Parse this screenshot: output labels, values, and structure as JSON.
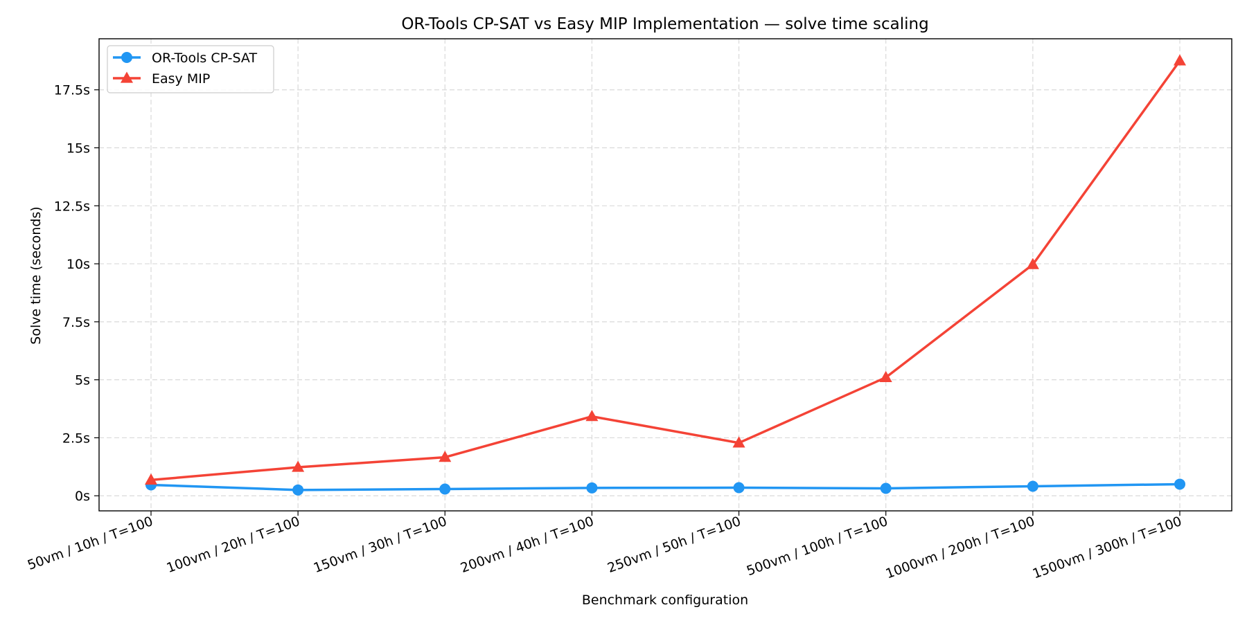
{
  "chart_data": {
    "type": "line",
    "title": "OR-Tools CP-SAT vs Easy MIP Implementation — solve time scaling",
    "xlabel": "Benchmark configuration",
    "ylabel": "Solve time (seconds)",
    "categories": [
      "50vm / 10h / T=100",
      "100vm / 20h / T=100",
      "150vm / 30h / T=100",
      "200vm / 40h / T=100",
      "250vm / 50h / T=100",
      "500vm / 100h / T=100",
      "1000vm / 200h / T=100",
      "1500vm / 300h / T=100"
    ],
    "yticks": [
      0,
      2.5,
      5,
      7.5,
      10,
      12.5,
      15,
      17.5
    ],
    "ytick_labels": [
      "0s",
      "2.5s",
      "5s",
      "7.5s",
      "10s",
      "12.5s",
      "15s",
      "17.5s"
    ],
    "ylim": [
      -0.65,
      19.7
    ],
    "grid": true,
    "legend_position": "top-left",
    "series": [
      {
        "name": "OR-Tools CP-SAT",
        "color": "#2196F3",
        "marker": "circle",
        "values": [
          0.47,
          0.25,
          0.29,
          0.34,
          0.35,
          0.32,
          0.41,
          0.5
        ]
      },
      {
        "name": "Easy MIP",
        "color": "#F44336",
        "marker": "triangle",
        "values": [
          0.68,
          1.23,
          1.66,
          3.42,
          2.28,
          5.1,
          9.97,
          18.75
        ]
      }
    ]
  }
}
